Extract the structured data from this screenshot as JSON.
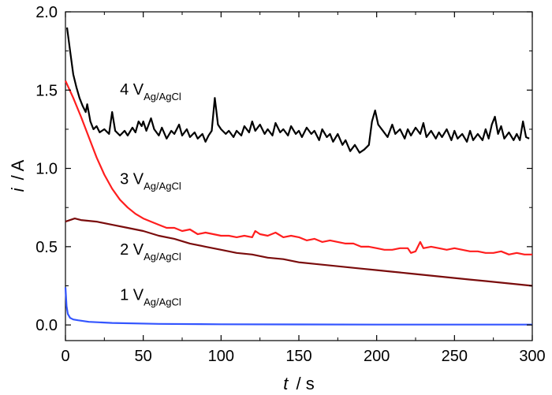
{
  "chart_data": {
    "type": "line",
    "xlabel_var": "t",
    "xlabel_unit": "/ s",
    "ylabel_var": "i",
    "ylabel_unit": "/ A",
    "xlim": [
      0,
      300
    ],
    "ylim": [
      -0.1,
      2.0
    ],
    "x_ticks": [
      0,
      50,
      100,
      150,
      200,
      250,
      300
    ],
    "y_ticks": [
      0.0,
      0.5,
      1.0,
      1.5,
      2.0
    ],
    "x_tick_labels": [
      "0",
      "50",
      "100",
      "150",
      "200",
      "250",
      "300"
    ],
    "y_tick_labels": [
      "0.0",
      "0.5",
      "1.0",
      "1.5",
      "2.0"
    ],
    "grid": false,
    "series": [
      {
        "label_main": "4 V",
        "label_sub": "Ag/AgCl",
        "color": "#000000",
        "label_at": [
          35,
          1.47
        ],
        "points": [
          [
            1,
            1.9
          ],
          [
            3,
            1.75
          ],
          [
            5,
            1.6
          ],
          [
            7,
            1.52
          ],
          [
            9,
            1.45
          ],
          [
            11,
            1.4
          ],
          [
            13,
            1.36
          ],
          [
            14,
            1.41
          ],
          [
            16,
            1.3
          ],
          [
            18,
            1.25
          ],
          [
            20,
            1.27
          ],
          [
            22,
            1.23
          ],
          [
            25,
            1.25
          ],
          [
            28,
            1.22
          ],
          [
            30,
            1.36
          ],
          [
            32,
            1.24
          ],
          [
            35,
            1.21
          ],
          [
            38,
            1.24
          ],
          [
            40,
            1.21
          ],
          [
            43,
            1.26
          ],
          [
            45,
            1.23
          ],
          [
            47,
            1.3
          ],
          [
            49,
            1.27
          ],
          [
            50,
            1.3
          ],
          [
            52,
            1.24
          ],
          [
            55,
            1.32
          ],
          [
            57,
            1.25
          ],
          [
            60,
            1.21
          ],
          [
            62,
            1.26
          ],
          [
            65,
            1.19
          ],
          [
            68,
            1.24
          ],
          [
            70,
            1.22
          ],
          [
            73,
            1.28
          ],
          [
            75,
            1.21
          ],
          [
            78,
            1.25
          ],
          [
            80,
            1.2
          ],
          [
            83,
            1.23
          ],
          [
            85,
            1.19
          ],
          [
            88,
            1.22
          ],
          [
            90,
            1.17
          ],
          [
            92,
            1.21
          ],
          [
            94,
            1.24
          ],
          [
            96,
            1.45
          ],
          [
            98,
            1.28
          ],
          [
            100,
            1.25
          ],
          [
            103,
            1.22
          ],
          [
            105,
            1.24
          ],
          [
            108,
            1.2
          ],
          [
            110,
            1.24
          ],
          [
            113,
            1.21
          ],
          [
            115,
            1.27
          ],
          [
            118,
            1.23
          ],
          [
            120,
            1.3
          ],
          [
            122,
            1.24
          ],
          [
            125,
            1.28
          ],
          [
            128,
            1.22
          ],
          [
            130,
            1.25
          ],
          [
            133,
            1.21
          ],
          [
            135,
            1.29
          ],
          [
            138,
            1.23
          ],
          [
            140,
            1.25
          ],
          [
            143,
            1.21
          ],
          [
            145,
            1.27
          ],
          [
            148,
            1.22
          ],
          [
            150,
            1.24
          ],
          [
            152,
            1.2
          ],
          [
            155,
            1.26
          ],
          [
            158,
            1.22
          ],
          [
            160,
            1.24
          ],
          [
            163,
            1.18
          ],
          [
            165,
            1.25
          ],
          [
            168,
            1.2
          ],
          [
            170,
            1.22
          ],
          [
            172,
            1.17
          ],
          [
            175,
            1.22
          ],
          [
            178,
            1.15
          ],
          [
            180,
            1.18
          ],
          [
            183,
            1.11
          ],
          [
            186,
            1.15
          ],
          [
            189,
            1.1
          ],
          [
            192,
            1.12
          ],
          [
            195,
            1.15
          ],
          [
            197,
            1.3
          ],
          [
            199,
            1.37
          ],
          [
            201,
            1.28
          ],
          [
            204,
            1.24
          ],
          [
            207,
            1.2
          ],
          [
            210,
            1.28
          ],
          [
            212,
            1.22
          ],
          [
            215,
            1.25
          ],
          [
            218,
            1.19
          ],
          [
            220,
            1.25
          ],
          [
            222,
            1.21
          ],
          [
            225,
            1.26
          ],
          [
            228,
            1.22
          ],
          [
            230,
            1.29
          ],
          [
            232,
            1.2
          ],
          [
            235,
            1.24
          ],
          [
            238,
            1.19
          ],
          [
            240,
            1.23
          ],
          [
            242,
            1.2
          ],
          [
            245,
            1.25
          ],
          [
            248,
            1.18
          ],
          [
            250,
            1.24
          ],
          [
            252,
            1.19
          ],
          [
            255,
            1.22
          ],
          [
            258,
            1.17
          ],
          [
            260,
            1.24
          ],
          [
            262,
            1.18
          ],
          [
            265,
            1.22
          ],
          [
            268,
            1.18
          ],
          [
            270,
            1.25
          ],
          [
            272,
            1.19
          ],
          [
            274,
            1.28
          ],
          [
            276,
            1.33
          ],
          [
            278,
            1.22
          ],
          [
            280,
            1.27
          ],
          [
            282,
            1.19
          ],
          [
            285,
            1.23
          ],
          [
            288,
            1.18
          ],
          [
            290,
            1.22
          ],
          [
            292,
            1.18
          ],
          [
            294,
            1.3
          ],
          [
            296,
            1.2
          ],
          [
            298,
            1.19
          ]
        ]
      },
      {
        "label_main": "3 V",
        "label_sub": "Ag/AgCl",
        "color": "#ff1e1e",
        "label_at": [
          35,
          0.9
        ],
        "points": [
          [
            0,
            1.56
          ],
          [
            5,
            1.45
          ],
          [
            10,
            1.33
          ],
          [
            15,
            1.2
          ],
          [
            20,
            1.07
          ],
          [
            25,
            0.96
          ],
          [
            30,
            0.87
          ],
          [
            35,
            0.8
          ],
          [
            40,
            0.75
          ],
          [
            45,
            0.71
          ],
          [
            50,
            0.68
          ],
          [
            55,
            0.66
          ],
          [
            60,
            0.64
          ],
          [
            65,
            0.62
          ],
          [
            70,
            0.62
          ],
          [
            75,
            0.6
          ],
          [
            80,
            0.61
          ],
          [
            85,
            0.58
          ],
          [
            90,
            0.59
          ],
          [
            95,
            0.58
          ],
          [
            100,
            0.57
          ],
          [
            105,
            0.57
          ],
          [
            110,
            0.56
          ],
          [
            115,
            0.57
          ],
          [
            120,
            0.56
          ],
          [
            122,
            0.6
          ],
          [
            125,
            0.58
          ],
          [
            130,
            0.57
          ],
          [
            135,
            0.59
          ],
          [
            140,
            0.56
          ],
          [
            145,
            0.57
          ],
          [
            150,
            0.56
          ],
          [
            155,
            0.54
          ],
          [
            160,
            0.55
          ],
          [
            165,
            0.53
          ],
          [
            170,
            0.54
          ],
          [
            175,
            0.53
          ],
          [
            180,
            0.52
          ],
          [
            185,
            0.52
          ],
          [
            190,
            0.5
          ],
          [
            195,
            0.5
          ],
          [
            200,
            0.49
          ],
          [
            205,
            0.48
          ],
          [
            210,
            0.48
          ],
          [
            215,
            0.49
          ],
          [
            220,
            0.49
          ],
          [
            222,
            0.46
          ],
          [
            225,
            0.47
          ],
          [
            228,
            0.53
          ],
          [
            230,
            0.49
          ],
          [
            235,
            0.5
          ],
          [
            240,
            0.49
          ],
          [
            245,
            0.48
          ],
          [
            250,
            0.49
          ],
          [
            255,
            0.48
          ],
          [
            260,
            0.47
          ],
          [
            265,
            0.47
          ],
          [
            270,
            0.46
          ],
          [
            275,
            0.46
          ],
          [
            280,
            0.47
          ],
          [
            285,
            0.45
          ],
          [
            290,
            0.46
          ],
          [
            295,
            0.45
          ],
          [
            300,
            0.45
          ]
        ]
      },
      {
        "label_main": "2 V",
        "label_sub": "Ag/AgCl",
        "color": "#7a0c0c",
        "label_at": [
          35,
          0.45
        ],
        "points": [
          [
            0,
            0.66
          ],
          [
            3,
            0.67
          ],
          [
            6,
            0.68
          ],
          [
            10,
            0.67
          ],
          [
            20,
            0.66
          ],
          [
            30,
            0.64
          ],
          [
            40,
            0.62
          ],
          [
            50,
            0.6
          ],
          [
            60,
            0.57
          ],
          [
            70,
            0.55
          ],
          [
            80,
            0.52
          ],
          [
            90,
            0.5
          ],
          [
            100,
            0.48
          ],
          [
            110,
            0.46
          ],
          [
            120,
            0.45
          ],
          [
            130,
            0.43
          ],
          [
            140,
            0.42
          ],
          [
            150,
            0.4
          ],
          [
            160,
            0.39
          ],
          [
            170,
            0.38
          ],
          [
            180,
            0.37
          ],
          [
            190,
            0.36
          ],
          [
            200,
            0.35
          ],
          [
            210,
            0.34
          ],
          [
            220,
            0.33
          ],
          [
            230,
            0.32
          ],
          [
            240,
            0.31
          ],
          [
            250,
            0.3
          ],
          [
            260,
            0.29
          ],
          [
            270,
            0.28
          ],
          [
            280,
            0.27
          ],
          [
            290,
            0.26
          ],
          [
            300,
            0.25
          ]
        ]
      },
      {
        "label_main": "1 V",
        "label_sub": "Ag/AgCl",
        "color": "#3355ff",
        "label_at": [
          35,
          0.16
        ],
        "points": [
          [
            0,
            0.24
          ],
          [
            0.7,
            0.12
          ],
          [
            1.5,
            0.07
          ],
          [
            3,
            0.045
          ],
          [
            5,
            0.035
          ],
          [
            8,
            0.03
          ],
          [
            15,
            0.02
          ],
          [
            30,
            0.013
          ],
          [
            60,
            0.007
          ],
          [
            100,
            0.004
          ],
          [
            150,
            0.003
          ],
          [
            200,
            0.002
          ],
          [
            250,
            0.002
          ],
          [
            300,
            0.002
          ]
        ]
      }
    ]
  }
}
